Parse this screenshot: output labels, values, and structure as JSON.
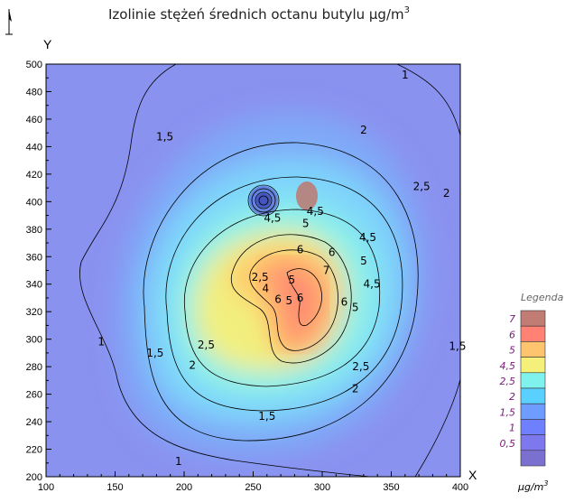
{
  "chart_data": {
    "type": "contour",
    "title": "Izolinie stężeń średnich octanu butylu µg/m",
    "title_superscript": "3",
    "xlabel": "X",
    "ylabel": "Y",
    "xlim": [
      100,
      400
    ],
    "ylim": [
      200,
      500
    ],
    "x_ticks": [
      "100",
      "150",
      "200",
      "250",
      "300",
      "350",
      "400"
    ],
    "y_ticks": [
      "200",
      "220",
      "240",
      "260",
      "280",
      "300",
      "320",
      "340",
      "360",
      "380",
      "400",
      "420",
      "440",
      "460",
      "480",
      "500"
    ],
    "levels": [
      "0,5",
      "1",
      "1,5",
      "2",
      "2,5",
      "4,5",
      "5",
      "6",
      "7"
    ],
    "peak": {
      "x": 303,
      "y": 343
    },
    "secondary_center": {
      "x": 263,
      "y": 338
    },
    "contour_labels": [
      {
        "text": "1",
        "x": 360,
        "y": 492
      },
      {
        "text": "1",
        "x": 140,
        "y": 298
      },
      {
        "text": "1",
        "x": 196,
        "y": 211
      },
      {
        "text": "1,5",
        "x": 186,
        "y": 447
      },
      {
        "text": "1,5",
        "x": 179,
        "y": 290
      },
      {
        "text": "1,5",
        "x": 260,
        "y": 244
      },
      {
        "text": "1,5",
        "x": 398,
        "y": 295
      },
      {
        "text": "2",
        "x": 330,
        "y": 452
      },
      {
        "text": "2",
        "x": 390,
        "y": 406
      },
      {
        "text": "2",
        "x": 206,
        "y": 281
      },
      {
        "text": "2",
        "x": 324,
        "y": 264
      },
      {
        "text": "2,5",
        "x": 372,
        "y": 411
      },
      {
        "text": "2,5",
        "x": 216,
        "y": 296
      },
      {
        "text": "2,5",
        "x": 328,
        "y": 280
      },
      {
        "text": "4,5",
        "x": 264,
        "y": 388
      },
      {
        "text": "4,5",
        "x": 295,
        "y": 393
      },
      {
        "text": "4,5",
        "x": 333,
        "y": 374
      },
      {
        "text": "4,5",
        "x": 336,
        "y": 340
      },
      {
        "text": "5",
        "x": 288,
        "y": 384
      },
      {
        "text": "5",
        "x": 330,
        "y": 357
      },
      {
        "text": "5",
        "x": 324,
        "y": 323
      },
      {
        "text": "6",
        "x": 284,
        "y": 365
      },
      {
        "text": "6",
        "x": 307,
        "y": 363
      },
      {
        "text": "6",
        "x": 316,
        "y": 327
      },
      {
        "text": "6",
        "x": 284,
        "y": 330
      },
      {
        "text": "7",
        "x": 303,
        "y": 350
      },
      {
        "text": "2,5",
        "x": 255,
        "y": 345
      },
      {
        "text": "5",
        "x": 278,
        "y": 343
      },
      {
        "text": "4",
        "x": 259,
        "y": 337
      },
      {
        "text": "6",
        "x": 268,
        "y": 329
      },
      {
        "text": "5",
        "x": 276,
        "y": 328
      }
    ],
    "legend": {
      "title": "Legenda",
      "labels": [
        "7",
        "6",
        "5",
        "4,5",
        "2,5",
        "2",
        "1,5",
        "1",
        "0,5"
      ],
      "colors": [
        "#c17c74",
        "#ff8274",
        "#ffc56e",
        "#f5f07a",
        "#7ff2ee",
        "#5ad0ff",
        "#6e9cff",
        "#6f80ff",
        "#7e78ee",
        "#7b70d0"
      ],
      "unit": "µg/m",
      "unit_superscript": "3"
    }
  }
}
